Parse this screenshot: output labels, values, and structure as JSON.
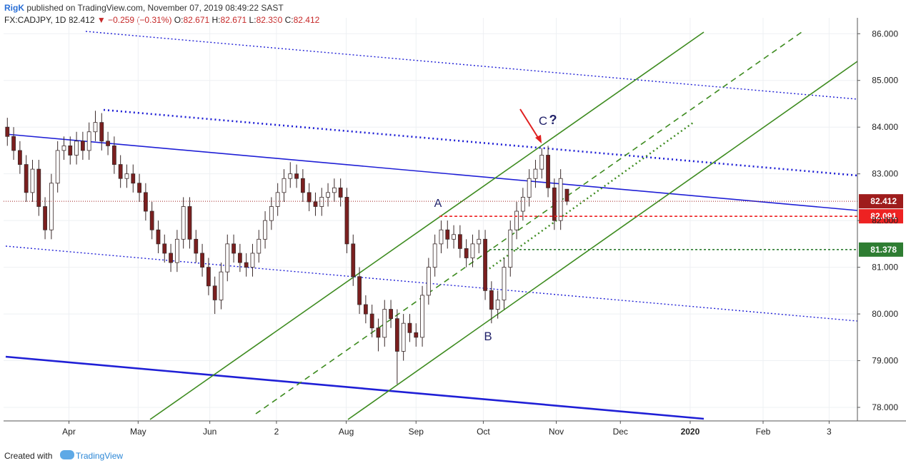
{
  "header": {
    "author": "RigK",
    "published": " published on TradingView.com, November 07, 2019 08:49:22 SAST",
    "symbol": "FX:CADJPY, 1D ",
    "last": "82.412",
    "change": " ▼ −0.259 (−0.31%) ",
    "o_label": "O:",
    "o": "82.671",
    "h_label": " H:",
    "h": "82.671",
    "l_label": " L:",
    "l": "82.330",
    "c_label": " C:",
    "c": "82.412"
  },
  "footer": {
    "created": "Created with",
    "brand": "TradingView"
  },
  "chart_data": {
    "type": "candlestick",
    "ohlc": [
      [
        84.0,
        84.2,
        83.6,
        83.8
      ],
      [
        83.8,
        84.0,
        83.3,
        83.5
      ],
      [
        83.5,
        83.7,
        83.0,
        83.2
      ],
      [
        83.2,
        83.4,
        82.4,
        82.6
      ],
      [
        82.6,
        83.3,
        82.4,
        83.1
      ],
      [
        83.1,
        83.3,
        82.1,
        82.3
      ],
      [
        82.3,
        82.5,
        81.6,
        81.8
      ],
      [
        81.8,
        83.0,
        81.6,
        82.8
      ],
      [
        82.8,
        83.7,
        82.6,
        83.5
      ],
      [
        83.5,
        83.8,
        83.3,
        83.6
      ],
      [
        83.6,
        83.8,
        83.2,
        83.4
      ],
      [
        83.4,
        83.9,
        83.2,
        83.7
      ],
      [
        83.7,
        83.9,
        83.3,
        83.5
      ],
      [
        83.5,
        84.1,
        83.3,
        83.9
      ],
      [
        83.9,
        84.35,
        83.7,
        84.1
      ],
      [
        84.1,
        84.3,
        83.5,
        83.7
      ],
      [
        83.7,
        83.9,
        83.4,
        83.6
      ],
      [
        83.6,
        83.8,
        83.0,
        83.2
      ],
      [
        83.2,
        83.4,
        82.7,
        82.9
      ],
      [
        82.9,
        83.2,
        82.7,
        83.0
      ],
      [
        83.0,
        83.2,
        82.6,
        82.8
      ],
      [
        82.8,
        83.0,
        82.4,
        82.6
      ],
      [
        82.6,
        82.8,
        82.0,
        82.2
      ],
      [
        82.2,
        82.4,
        81.6,
        81.8
      ],
      [
        81.8,
        82.0,
        81.3,
        81.5
      ],
      [
        81.5,
        81.7,
        81.1,
        81.3
      ],
      [
        81.3,
        81.5,
        80.9,
        81.1
      ],
      [
        81.1,
        81.8,
        80.9,
        81.6
      ],
      [
        81.6,
        82.5,
        81.4,
        82.3
      ],
      [
        82.3,
        82.5,
        81.4,
        81.6
      ],
      [
        81.6,
        81.8,
        81.1,
        81.3
      ],
      [
        81.3,
        81.5,
        80.8,
        81.0
      ],
      [
        81.0,
        81.2,
        80.4,
        80.6
      ],
      [
        80.6,
        80.8,
        80.0,
        80.3
      ],
      [
        80.3,
        81.1,
        80.1,
        80.9
      ],
      [
        80.9,
        81.7,
        80.7,
        81.5
      ],
      [
        81.5,
        81.7,
        81.1,
        81.3
      ],
      [
        81.3,
        81.5,
        80.9,
        81.1
      ],
      [
        81.1,
        81.3,
        80.8,
        81.0
      ],
      [
        81.0,
        81.5,
        80.8,
        81.3
      ],
      [
        81.3,
        81.8,
        81.1,
        81.6
      ],
      [
        81.6,
        82.2,
        81.4,
        82.0
      ],
      [
        82.0,
        82.5,
        81.8,
        82.3
      ],
      [
        82.3,
        82.8,
        82.1,
        82.6
      ],
      [
        82.6,
        83.1,
        82.4,
        82.9
      ],
      [
        82.9,
        83.25,
        82.7,
        83.0
      ],
      [
        83.0,
        83.2,
        82.7,
        82.9
      ],
      [
        82.9,
        83.1,
        82.4,
        82.6
      ],
      [
        82.6,
        82.8,
        82.2,
        82.4
      ],
      [
        82.4,
        82.6,
        82.1,
        82.3
      ],
      [
        82.3,
        82.7,
        82.1,
        82.5
      ],
      [
        82.5,
        82.8,
        82.3,
        82.6
      ],
      [
        82.6,
        82.9,
        82.4,
        82.7
      ],
      [
        82.7,
        82.9,
        82.3,
        82.5
      ],
      [
        82.5,
        82.7,
        81.3,
        81.5
      ],
      [
        81.5,
        81.7,
        80.6,
        80.8
      ],
      [
        80.8,
        81.0,
        80.0,
        80.2
      ],
      [
        80.2,
        80.4,
        79.8,
        80.0
      ],
      [
        80.0,
        80.2,
        79.5,
        79.7
      ],
      [
        79.7,
        79.9,
        79.2,
        79.5
      ],
      [
        79.5,
        80.3,
        79.3,
        80.1
      ],
      [
        80.1,
        80.3,
        79.7,
        79.9
      ],
      [
        79.9,
        80.1,
        78.5,
        79.2
      ],
      [
        79.2,
        80.0,
        79.0,
        79.8
      ],
      [
        79.8,
        80.0,
        79.4,
        79.6
      ],
      [
        79.6,
        79.8,
        79.3,
        79.5
      ],
      [
        79.5,
        80.6,
        79.3,
        80.4
      ],
      [
        80.4,
        81.2,
        80.2,
        81.0
      ],
      [
        81.0,
        81.7,
        80.8,
        81.5
      ],
      [
        81.5,
        82.0,
        81.3,
        81.8
      ],
      [
        81.8,
        82.0,
        81.4,
        81.6
      ],
      [
        81.6,
        81.9,
        81.4,
        81.7
      ],
      [
        81.7,
        81.9,
        81.2,
        81.4
      ],
      [
        81.4,
        81.6,
        81.0,
        81.2
      ],
      [
        81.2,
        81.7,
        81.0,
        81.5
      ],
      [
        81.5,
        81.8,
        81.3,
        81.6
      ],
      [
        81.6,
        81.8,
        80.3,
        80.5
      ],
      [
        80.5,
        80.7,
        79.8,
        80.1
      ],
      [
        80.1,
        80.5,
        79.9,
        80.3
      ],
      [
        80.3,
        81.2,
        80.1,
        81.0
      ],
      [
        81.0,
        82.0,
        80.8,
        81.8
      ],
      [
        81.8,
        82.4,
        81.6,
        82.2
      ],
      [
        82.2,
        82.7,
        82.0,
        82.5
      ],
      [
        82.5,
        83.1,
        82.3,
        82.9
      ],
      [
        82.9,
        83.3,
        82.7,
        83.1
      ],
      [
        83.1,
        83.55,
        82.9,
        83.4
      ],
      [
        83.4,
        83.6,
        82.5,
        82.7
      ],
      [
        82.7,
        82.9,
        81.8,
        82.0
      ],
      [
        82.0,
        83.1,
        81.8,
        82.9
      ],
      [
        82.671,
        82.671,
        82.33,
        82.412
      ]
    ],
    "up_color": "#ffffff",
    "down_color": "#7b1f1f",
    "edge_color": "#3a2a2a",
    "xlim": [
      -0.6,
      135.2
    ],
    "xticks": [
      {
        "value": 9.8,
        "label": "Apr"
      },
      {
        "value": 20.8,
        "label": "May"
      },
      {
        "value": 32.2,
        "label": "Jun"
      },
      {
        "value": 42.8,
        "label": "2"
      },
      {
        "value": 53.9,
        "label": "Aug"
      },
      {
        "value": 65,
        "label": "Sep"
      },
      {
        "value": 75.7,
        "label": "Oct"
      },
      {
        "value": 87.3,
        "label": "Nov"
      },
      {
        "value": 97.5,
        "label": "Dec"
      },
      {
        "value": 108.6,
        "label": "2020"
      },
      {
        "value": 120.2,
        "label": "Feb"
      },
      {
        "value": 130.7,
        "label": "3"
      }
    ],
    "ylim": [
      77.71,
      86.34
    ],
    "yticks": [
      {
        "value": 78,
        "label": "78.000"
      },
      {
        "value": 79,
        "label": "79.000"
      },
      {
        "value": 80,
        "label": "80.000"
      },
      {
        "value": 81,
        "label": "81.000"
      },
      {
        "value": 82,
        "label": "82.000"
      },
      {
        "value": 83,
        "label": "83.000"
      },
      {
        "value": 84,
        "label": "84.000"
      },
      {
        "value": 85,
        "label": "85.000"
      },
      {
        "value": 86,
        "label": "86.000"
      }
    ],
    "price_lines": [
      {
        "value": 82.412,
        "color": "#9e1c1c",
        "dash": "1,2"
      },
      {
        "value": 82.091,
        "color": "#ee2222",
        "dash": "4,3"
      },
      {
        "value": 81.378,
        "color": "#2e7d32",
        "dash": "3,3"
      }
    ],
    "annotations": [
      "A",
      "B",
      "C",
      "?"
    ]
  }
}
